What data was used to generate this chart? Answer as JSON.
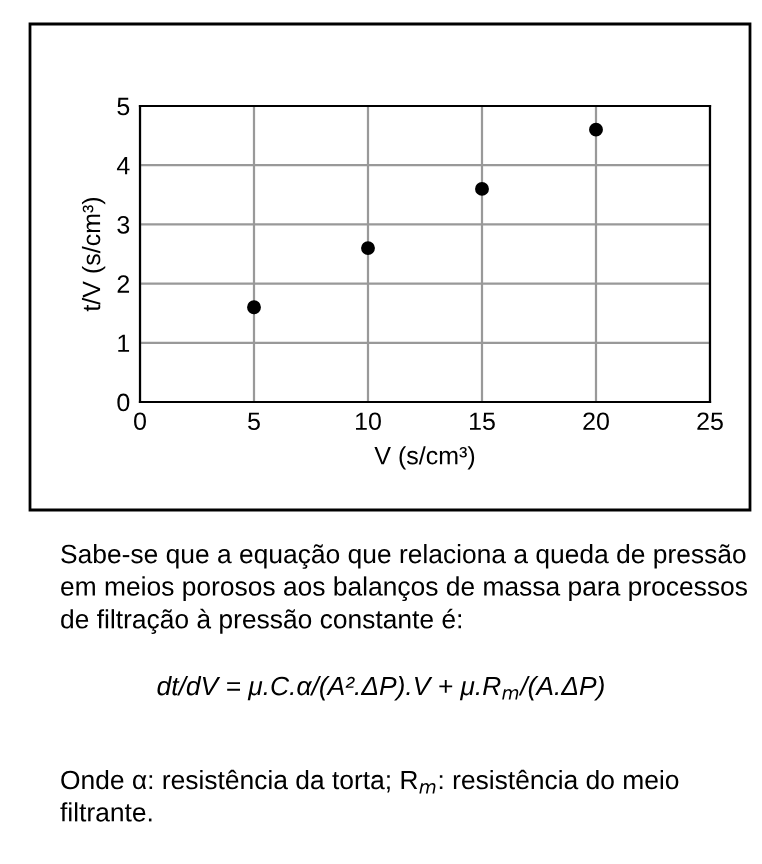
{
  "chart_data": {
    "type": "scatter",
    "xlabel": "V (s/cm³)",
    "ylabel": "t/V (s/cm³)",
    "x": [
      5,
      10,
      15,
      20
    ],
    "series": [
      {
        "color": "#000000",
        "values": [
          1.6,
          2.6,
          3.6,
          4.6
        ]
      }
    ],
    "xlim": [
      0,
      25
    ],
    "ylim": [
      0,
      5
    ],
    "xticks": [
      0,
      5,
      10,
      15,
      20,
      25
    ],
    "yticks": [
      0,
      1,
      2,
      3,
      4,
      5
    ],
    "grid": true,
    "marker": "circle",
    "annotations": [
      "Sabe-se que a equação que relaciona a queda de pressão em meios porosos aos balanços de massa para processos de filtração à pressão constante é:",
      "dt/dV = μ.C.α/(A².ΔP).V + μ.R$_{m}$/(A.ΔP)",
      "Onde α: resistência da torta; R$_{m}$: resistência do meio filtrante."
    ]
  }
}
